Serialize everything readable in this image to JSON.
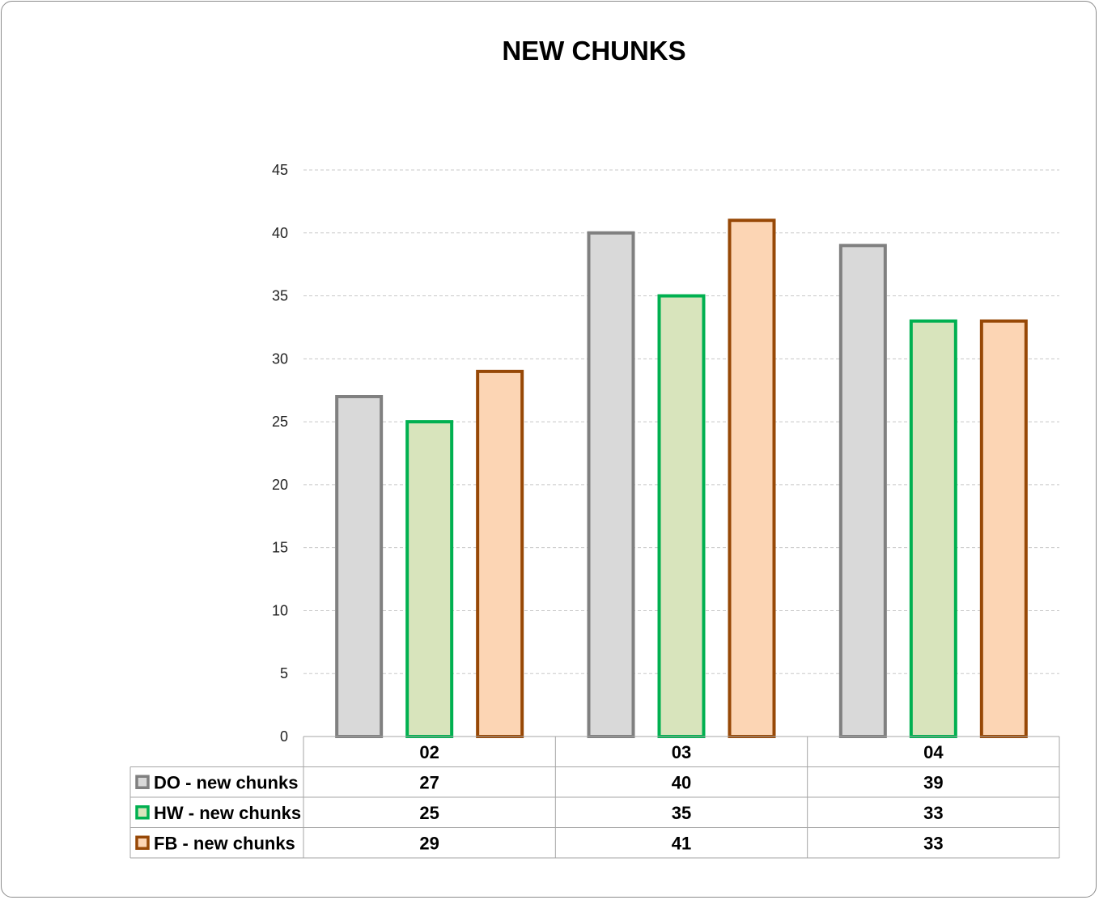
{
  "chart_data": {
    "type": "bar",
    "title": "NEW CHUNKS",
    "categories": [
      "02",
      "03",
      "04"
    ],
    "ylim": [
      0,
      45
    ],
    "yticks": [
      0,
      5,
      10,
      15,
      20,
      25,
      30,
      35,
      40,
      45
    ],
    "grid": true,
    "legend": "data-table",
    "series": [
      {
        "name": "DO - new chunks",
        "values": [
          27,
          40,
          39
        ],
        "fill": "#d9d9d9",
        "stroke": "#808080"
      },
      {
        "name": "HW - new chunks",
        "values": [
          25,
          35,
          33
        ],
        "fill": "#d8e4bc",
        "stroke": "#00b050"
      },
      {
        "name": "FB - new chunks",
        "values": [
          29,
          41,
          33
        ],
        "fill": "#fcd5b4",
        "stroke": "#974806"
      }
    ]
  }
}
